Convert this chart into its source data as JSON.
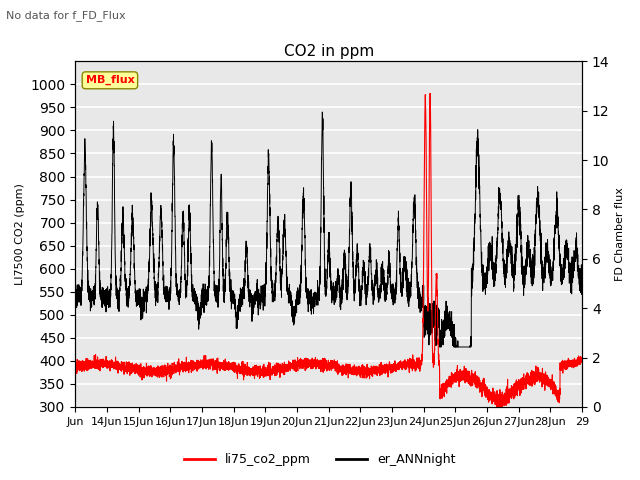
{
  "title": "CO2 in ppm",
  "subtitle": "No data for f_FD_Flux",
  "ylabel_left": "LI7500 CO2 (ppm)",
  "ylabel_right": "FD Chamber flux",
  "ylim_left": [
    300,
    1050
  ],
  "ylim_right": [
    0,
    14
  ],
  "yticks_left": [
    300,
    350,
    400,
    450,
    500,
    550,
    600,
    650,
    700,
    750,
    800,
    850,
    900,
    950,
    1000
  ],
  "yticks_right": [
    0,
    2,
    4,
    6,
    8,
    10,
    12,
    14
  ],
  "xticklabels": [
    "Jun",
    "14Jun",
    "15Jun",
    "16Jun",
    "17Jun",
    "18Jun",
    "19Jun",
    "20Jun",
    "21Jun",
    "22Jun",
    "23Jun",
    "24Jun",
    "25Jun",
    "26Jun",
    "27Jun",
    "28Jun",
    "29"
  ],
  "legend_labels": [
    "li75_co2_ppm",
    "er_ANNnight"
  ],
  "legend_colors": [
    "red",
    "black"
  ],
  "mb_flux_box_color": "#ffff99",
  "background_color": "#e8e8e8",
  "grid_color": "white"
}
